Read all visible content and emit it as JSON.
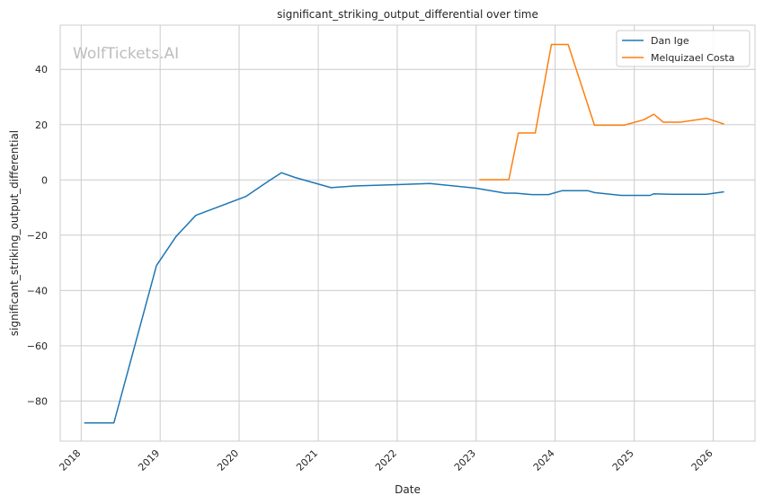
{
  "chart_data": {
    "type": "line",
    "title": "significant_striking_output_differential over time",
    "xlabel": "Date",
    "ylabel": "significant_striking_output_differential",
    "watermark": "WolfTickets.AI",
    "x_ticks": [
      "2018",
      "2019",
      "2020",
      "2021",
      "2022",
      "2023",
      "2024",
      "2025",
      "2026"
    ],
    "y_ticks": [
      -80,
      -60,
      -40,
      -20,
      0,
      20,
      40
    ],
    "xlim": [
      "2017-09-26",
      "2026-07-13"
    ],
    "ylim": [
      -94.5,
      56.0
    ],
    "grid": true,
    "legend_position": "top-right",
    "series": [
      {
        "name": "Dan Ige",
        "color": "#1f77b4",
        "points": [
          [
            "2018-01-15",
            -87.9
          ],
          [
            "2018-06-01",
            -87.9
          ],
          [
            "2018-12-15",
            -31.0
          ],
          [
            "2019-03-15",
            -20.5
          ],
          [
            "2019-06-15",
            -12.8
          ],
          [
            "2020-02-01",
            -6.0
          ],
          [
            "2020-05-15",
            -0.5
          ],
          [
            "2020-07-15",
            2.6
          ],
          [
            "2020-09-15",
            0.9
          ],
          [
            "2021-03-01",
            -2.8
          ],
          [
            "2021-06-15",
            -2.2
          ],
          [
            "2022-01-01",
            -1.7
          ],
          [
            "2022-06-01",
            -1.3
          ],
          [
            "2023-01-01",
            -3.0
          ],
          [
            "2023-05-15",
            -4.8
          ],
          [
            "2023-07-01",
            -4.8
          ],
          [
            "2023-09-15",
            -5.3
          ],
          [
            "2023-12-01",
            -5.3
          ],
          [
            "2024-02-01",
            -3.9
          ],
          [
            "2024-06-01",
            -3.9
          ],
          [
            "2024-07-01",
            -4.6
          ],
          [
            "2024-11-01",
            -5.6
          ],
          [
            "2025-03-15",
            -5.6
          ],
          [
            "2025-04-01",
            -5.0
          ],
          [
            "2025-06-15",
            -5.2
          ],
          [
            "2025-12-01",
            -5.2
          ],
          [
            "2026-02-20",
            -4.3
          ]
        ]
      },
      {
        "name": "Melquizael Costa",
        "color": "#ff7f0e",
        "points": [
          [
            "2023-01-15",
            0.1
          ],
          [
            "2023-06-01",
            0.1
          ],
          [
            "2023-07-15",
            17.0
          ],
          [
            "2023-10-01",
            17.0
          ],
          [
            "2023-12-15",
            49.0
          ],
          [
            "2024-03-01",
            49.0
          ],
          [
            "2024-07-01",
            19.8
          ],
          [
            "2024-11-15",
            19.8
          ],
          [
            "2025-02-15",
            21.8
          ],
          [
            "2025-04-01",
            23.8
          ],
          [
            "2025-05-15",
            20.9
          ],
          [
            "2025-08-01",
            20.9
          ],
          [
            "2025-12-01",
            22.3
          ],
          [
            "2026-02-20",
            20.2
          ]
        ]
      }
    ]
  }
}
